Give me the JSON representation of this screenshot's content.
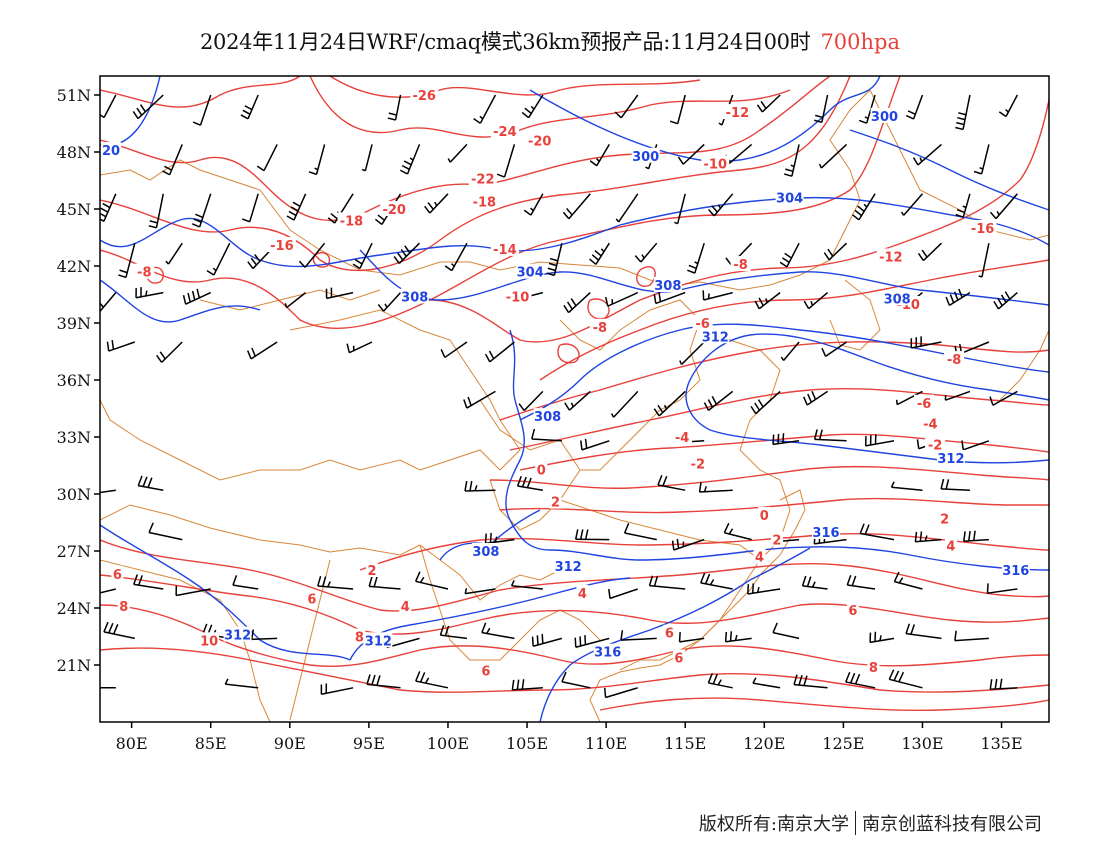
{
  "title": {
    "main": "2024年11月24日WRF/cmaq模式36km预报产品:11月24日00时",
    "level": "700hpa"
  },
  "axes": {
    "lon_ticks": [
      "80E",
      "85E",
      "90E",
      "95E",
      "100E",
      "105E",
      "110E",
      "115E",
      "120E",
      "125E",
      "130E",
      "135E"
    ],
    "lat_ticks": [
      "51N",
      "48N",
      "45N",
      "42N",
      "39N",
      "36N",
      "33N",
      "30N",
      "27N",
      "24N",
      "21N"
    ],
    "lon_range": [
      78,
      138
    ],
    "lat_range": [
      18,
      52
    ]
  },
  "colors": {
    "temperature": "#e8403a",
    "height": "#1f44e0",
    "boundary": "#d8873a",
    "barb": "#000000"
  },
  "temperature_labels": [
    {
      "text": "-26",
      "lon": 98.5,
      "lat": 51.0
    },
    {
      "text": "-24",
      "lon": 103.6,
      "lat": 49.1
    },
    {
      "text": "-20",
      "lon": 105.8,
      "lat": 48.6
    },
    {
      "text": "-22",
      "lon": 102.2,
      "lat": 46.6
    },
    {
      "text": "-18",
      "lon": 102.3,
      "lat": 45.4
    },
    {
      "text": "-20",
      "lon": 96.6,
      "lat": 45.0
    },
    {
      "text": "-18",
      "lon": 93.9,
      "lat": 44.4
    },
    {
      "text": "-16",
      "lon": 89.5,
      "lat": 43.1
    },
    {
      "text": "-14",
      "lon": 103.6,
      "lat": 42.9
    },
    {
      "text": "-8",
      "lon": 80.8,
      "lat": 41.7
    },
    {
      "text": "-10",
      "lon": 104.4,
      "lat": 40.4
    },
    {
      "text": "-8",
      "lon": 109.6,
      "lat": 38.8
    },
    {
      "text": "-12",
      "lon": 118.3,
      "lat": 50.1
    },
    {
      "text": "-10",
      "lon": 116.9,
      "lat": 47.4
    },
    {
      "text": "-8",
      "lon": 118.5,
      "lat": 42.1
    },
    {
      "text": "-12",
      "lon": 128.0,
      "lat": 42.5
    },
    {
      "text": "-10",
      "lon": 129.1,
      "lat": 40.0
    },
    {
      "text": "-16",
      "lon": 133.8,
      "lat": 44.0
    },
    {
      "text": "-6",
      "lon": 116.1,
      "lat": 39.0
    },
    {
      "text": "-8",
      "lon": 132.0,
      "lat": 37.1
    },
    {
      "text": "-6",
      "lon": 130.1,
      "lat": 34.8
    },
    {
      "text": "-4",
      "lon": 130.5,
      "lat": 33.7
    },
    {
      "text": "-2",
      "lon": 130.8,
      "lat": 32.6
    },
    {
      "text": "-4",
      "lon": 114.8,
      "lat": 33.0
    },
    {
      "text": "-2",
      "lon": 115.8,
      "lat": 31.6
    },
    {
      "text": "0",
      "lon": 105.9,
      "lat": 31.3
    },
    {
      "text": "2",
      "lon": 106.8,
      "lat": 29.6
    },
    {
      "text": "0",
      "lon": 120.0,
      "lat": 28.9
    },
    {
      "text": "2",
      "lon": 120.8,
      "lat": 27.6
    },
    {
      "text": "2",
      "lon": 131.4,
      "lat": 28.7
    },
    {
      "text": "4",
      "lon": 131.8,
      "lat": 27.3
    },
    {
      "text": "2",
      "lon": 95.2,
      "lat": 26.0
    },
    {
      "text": "4",
      "lon": 119.7,
      "lat": 26.7
    },
    {
      "text": "4",
      "lon": 108.5,
      "lat": 24.8
    },
    {
      "text": "4",
      "lon": 97.3,
      "lat": 24.1
    },
    {
      "text": "6",
      "lon": 79.1,
      "lat": 25.8
    },
    {
      "text": "6",
      "lon": 91.4,
      "lat": 24.5
    },
    {
      "text": "6",
      "lon": 125.6,
      "lat": 23.9
    },
    {
      "text": "8",
      "lon": 79.5,
      "lat": 24.1
    },
    {
      "text": "8",
      "lon": 94.4,
      "lat": 22.5
    },
    {
      "text": "10",
      "lon": 84.9,
      "lat": 22.3
    },
    {
      "text": "6",
      "lon": 114.0,
      "lat": 22.7
    },
    {
      "text": "6",
      "lon": 102.4,
      "lat": 20.7
    },
    {
      "text": "6",
      "lon": 114.6,
      "lat": 21.4
    },
    {
      "text": "8",
      "lon": 126.9,
      "lat": 20.9
    }
  ],
  "height_labels": [
    {
      "text": "300",
      "lon": 127.6,
      "lat": 49.9
    },
    {
      "text": "300",
      "lon": 112.5,
      "lat": 47.8
    },
    {
      "text": "20",
      "lon": 78.7,
      "lat": 48.1
    },
    {
      "text": "304",
      "lon": 121.6,
      "lat": 45.6
    },
    {
      "text": "304",
      "lon": 105.2,
      "lat": 41.7
    },
    {
      "text": "308",
      "lon": 113.9,
      "lat": 41.0
    },
    {
      "text": "308",
      "lon": 97.9,
      "lat": 40.4
    },
    {
      "text": "308",
      "lon": 128.4,
      "lat": 40.3
    },
    {
      "text": "312",
      "lon": 116.9,
      "lat": 38.3
    },
    {
      "text": "308",
      "lon": 106.3,
      "lat": 34.1
    },
    {
      "text": "312",
      "lon": 131.8,
      "lat": 31.9
    },
    {
      "text": "316",
      "lon": 123.9,
      "lat": 28.0
    },
    {
      "text": "316",
      "lon": 135.9,
      "lat": 26.0
    },
    {
      "text": "312",
      "lon": 107.6,
      "lat": 26.2
    },
    {
      "text": "308",
      "lon": 102.4,
      "lat": 27.0
    },
    {
      "text": "312",
      "lon": 86.7,
      "lat": 22.6
    },
    {
      "text": "312",
      "lon": 95.6,
      "lat": 22.3
    },
    {
      "text": "316",
      "lon": 110.1,
      "lat": 21.7
    }
  ],
  "copyright": {
    "left": "版权所有:南京大学",
    "right": "南京创蓝科技有限公司"
  }
}
